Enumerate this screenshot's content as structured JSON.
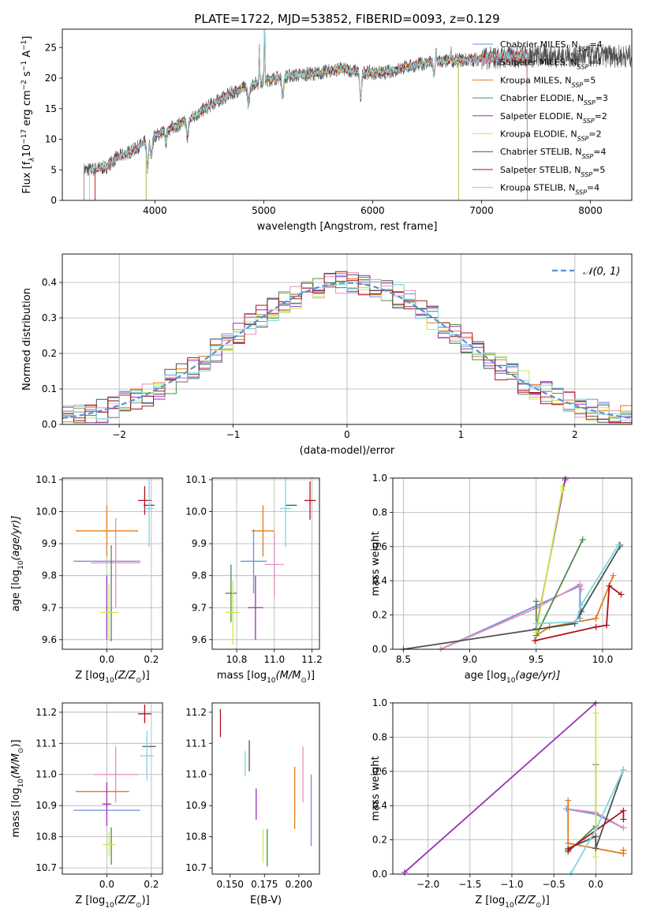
{
  "colors": {
    "chabrier_miles": "#6f8fd9",
    "salpeter_miles": "#e58fbf",
    "kroupa_miles": "#e07a1f",
    "chabrier_elodie": "#4f8a4f",
    "salpeter_elodie": "#9a2fb5",
    "kroupa_elodie": "#cde84a",
    "chabrier_stelib": "#505050",
    "salpeter_stelib": "#b0121a",
    "kroupa_stelib": "#7fd6e0",
    "normal": "#5a8fd6"
  },
  "chart_data": [
    {
      "id": "spectrum",
      "type": "line",
      "title": "PLATE=1722, MJD=53852, FIBERID=0093, z=0.129",
      "xlabel": "wavelength [Angstrom, rest frame]",
      "ylabel": "Flux [f",
      "ylabel_sub": "λ",
      "ylabel_mid": "10",
      "ylabel_sup1": "−17",
      "ylabel_end": " erg cm",
      "ylabel_sup2": "−2",
      "ylabel_mid2": " s",
      "ylabel_sup3": "−1",
      "ylabel_mid3": " A",
      "ylabel_sup4": "−1",
      "ylabel_close": "]",
      "xlim": [
        3150,
        8380
      ],
      "ylim": [
        0,
        28
      ],
      "xticks": [
        "4000",
        "5000",
        "6000",
        "7000",
        "8000"
      ],
      "yticks": [
        "0",
        "5",
        "10",
        "15",
        "20",
        "25"
      ],
      "continuum": {
        "x": [
          3400,
          3550,
          3650,
          3800,
          3950,
          4100,
          4300,
          4500,
          4700,
          4900,
          5100,
          5300,
          5500,
          5700,
          5900,
          6100,
          6300,
          6500,
          6700,
          6900,
          7100,
          7300,
          7420
        ],
        "y": [
          5.0,
          5.4,
          7.0,
          8.2,
          10.0,
          11.5,
          13.0,
          15.5,
          17.5,
          19.0,
          20.0,
          20.5,
          20.8,
          21.5,
          21.0,
          20.8,
          21.8,
          22.5,
          22.8,
          23.0,
          23.3,
          23.5,
          23.6
        ]
      },
      "absorption_features": [
        {
          "x": 3933,
          "depth": 4.5
        },
        {
          "x": 3968,
          "depth": 3.0
        },
        {
          "x": 4102,
          "depth": 2.0
        },
        {
          "x": 4300,
          "depth": 2.5
        },
        {
          "x": 4861,
          "depth": 3.0
        },
        {
          "x": 5175,
          "depth": 3.0
        },
        {
          "x": 5890,
          "depth": 4.5
        },
        {
          "x": 6563,
          "depth": 2.0
        }
      ],
      "emission_features": [
        {
          "x": 4959,
          "height": 6.0
        },
        {
          "x": 5007,
          "height": 10.0
        },
        {
          "x": 6583,
          "height": 2.0
        },
        {
          "x": 6720,
          "height": 1.5
        }
      ],
      "series": [
        {
          "name": "Chabrier MILES, N",
          "sub": "SSP",
          "suffix": "=4",
          "key": "chabrier_miles",
          "xmax": 7420
        },
        {
          "name": "Salpeter MILES, N",
          "sub": "SSP",
          "suffix": "=4",
          "key": "salpeter_miles",
          "xmax": 7420
        },
        {
          "name": "Kroupa MILES, N",
          "sub": "SSP",
          "suffix": "=5",
          "key": "kroupa_miles",
          "xmax": 7420
        },
        {
          "name": "Chabrier ELODIE, N",
          "sub": "SSP",
          "suffix": "=3",
          "key": "chabrier_elodie",
          "xmax": 6790
        },
        {
          "name": "Salpeter ELODIE, N",
          "sub": "SSP",
          "suffix": "=2",
          "key": "salpeter_elodie",
          "xmax": 6790
        },
        {
          "name": "Kroupa ELODIE, N",
          "sub": "SSP",
          "suffix": "=2",
          "key": "kroupa_elodie",
          "xmax": 6790
        },
        {
          "name": "Chabrier STELIB, N",
          "sub": "SSP",
          "suffix": "=4",
          "key": "chabrier_stelib",
          "xmax": 8380
        },
        {
          "name": "Salpeter STELIB, N",
          "sub": "SSP",
          "suffix": "=5",
          "key": "salpeter_stelib",
          "xmax": 7420
        },
        {
          "name": "Kroupa STELIB, N",
          "sub": "SSP",
          "suffix": "=4",
          "key": "kroupa_stelib",
          "xmax": 7420
        }
      ],
      "model_min_x": [
        3450,
        3450,
        3450,
        3920,
        3920,
        3920,
        3350,
        3450,
        3400
      ],
      "legend": "top-right",
      "grid": false
    },
    {
      "id": "residuals",
      "type": "histogram",
      "xlabel": "(data-model)/error",
      "ylabel": "Normed distribution",
      "xlim": [
        -2.5,
        2.5
      ],
      "ylim": [
        0,
        0.48
      ],
      "xticks": [
        "−2",
        "−1",
        "0",
        "1",
        "2"
      ],
      "yticks": [
        "0.0",
        "0.1",
        "0.2",
        "0.3",
        "0.4"
      ],
      "bin_width": 0.1,
      "normal_label": "𝒩(0, 1)",
      "legend": "top-right",
      "grid": true
    },
    {
      "id": "z_age",
      "type": "errorbar",
      "xlabel": "Z [log",
      "xlabel_sub": "10",
      "xlabel_rest": "(Z/Z",
      "xlabel_sub2": "⊙",
      "xlabel_close": ")]",
      "ylabel": "age  [log",
      "ylabel_sub": "10",
      "ylabel_rest": "(age/yr)]",
      "xlim": [
        -0.2,
        0.25
      ],
      "ylim": [
        9.57,
        10.105
      ],
      "xticks": [
        "0.0",
        "0.2"
      ],
      "yticks": [
        "9.6",
        "9.7",
        "9.8",
        "9.9",
        "10.0",
        "10.1"
      ],
      "points": [
        {
          "key": "chabrier_miles",
          "x": 0.0,
          "xerr": 0.15,
          "y": 9.845,
          "yerr": 0.0
        },
        {
          "key": "salpeter_miles",
          "x": 0.04,
          "xerr": 0.11,
          "y": 9.84,
          "yerr": 0.14
        },
        {
          "key": "kroupa_miles",
          "x": 0.0,
          "xerr": 0.14,
          "y": 9.94,
          "yerr": 0.08
        },
        {
          "key": "chabrier_elodie",
          "x": 0.02,
          "xerr": 0.0,
          "y": 9.745,
          "yerr": 0.15
        },
        {
          "key": "salpeter_elodie",
          "x": 0.0,
          "xerr": 0.0,
          "y": 9.7,
          "yerr": 0.1
        },
        {
          "key": "kroupa_elodie",
          "x": 0.01,
          "xerr": 0.04,
          "y": 9.685,
          "yerr": 0.09
        },
        {
          "key": "chabrier_stelib",
          "x": 0.19,
          "xerr": 0.025,
          "y": 10.02,
          "yerr": 0.0
        },
        {
          "key": "salpeter_stelib",
          "x": 0.17,
          "xerr": 0.03,
          "y": 10.035,
          "yerr": 0.045
        },
        {
          "key": "kroupa_stelib",
          "x": 0.19,
          "xerr": 0.02,
          "y": 10.01,
          "yerr": 0.12
        }
      ],
      "grid": true
    },
    {
      "id": "mass_age",
      "type": "errorbar",
      "xlabel": "mass [log",
      "xlabel_sub": "10",
      "xlabel_rest": "(M/M",
      "xlabel_sub2": "⊙",
      "xlabel_close": ")]",
      "ylabel": "",
      "xlim": [
        10.67,
        11.24
      ],
      "ylim": [
        9.57,
        10.105
      ],
      "xticks": [
        "10.8",
        "11.0",
        "11.2"
      ],
      "yticks": [
        "9.6",
        "9.7",
        "9.8",
        "9.9",
        "10.0",
        "10.1"
      ],
      "points": [
        {
          "key": "chabrier_miles",
          "x": 10.89,
          "xerr": 0.07,
          "y": 9.845,
          "yerr": 0.1
        },
        {
          "key": "salpeter_miles",
          "x": 11.0,
          "xerr": 0.05,
          "y": 9.835,
          "yerr": 0.1
        },
        {
          "key": "kroupa_miles",
          "x": 10.94,
          "xerr": 0.06,
          "y": 9.94,
          "yerr": 0.08
        },
        {
          "key": "chabrier_elodie",
          "x": 10.77,
          "xerr": 0.03,
          "y": 9.745,
          "yerr": 0.09
        },
        {
          "key": "salpeter_elodie",
          "x": 10.9,
          "xerr": 0.04,
          "y": 9.7,
          "yerr": 0.1
        },
        {
          "key": "kroupa_elodie",
          "x": 10.78,
          "xerr": 0.04,
          "y": 9.685,
          "yerr": 0.1
        },
        {
          "key": "chabrier_stelib",
          "x": 11.09,
          "xerr": 0.03,
          "y": 10.02,
          "yerr": 0.0
        },
        {
          "key": "salpeter_stelib",
          "x": 11.19,
          "xerr": 0.03,
          "y": 10.035,
          "yerr": 0.06
        },
        {
          "key": "kroupa_stelib",
          "x": 11.06,
          "xerr": 0.03,
          "y": 10.01,
          "yerr": 0.12
        }
      ],
      "grid": true
    },
    {
      "id": "age_weight",
      "type": "line",
      "xlabel": "age  [log",
      "xlabel_sub": "10",
      "xlabel_rest": "(age/yr)]",
      "ylabel": "mass weight",
      "xlim": [
        8.42,
        10.22
      ],
      "ylim": [
        0,
        1
      ],
      "xticks": [
        "8.5",
        "9.0",
        "9.5",
        "10.0"
      ],
      "yticks": [
        "0.0",
        "0.2",
        "0.4",
        "0.6",
        "0.8",
        "1.0"
      ],
      "series": [
        {
          "key": "chabrier_miles",
          "x": [
            8.78,
            9.83,
            9.83
          ],
          "y": [
            0.0,
            0.37,
            0.18
          ]
        },
        {
          "key": "salpeter_miles",
          "x": [
            8.78,
            9.5,
            9.83,
            9.84
          ],
          "y": [
            0.0,
            0.24,
            0.38,
            0.35
          ]
        },
        {
          "key": "kroupa_miles",
          "x": [
            9.5,
            9.6,
            9.95,
            10.08
          ],
          "y": [
            0.08,
            0.13,
            0.18,
            0.43
          ]
        },
        {
          "key": "chabrier_elodie",
          "x": [
            9.5,
            9.5,
            9.85
          ],
          "y": [
            0.28,
            0.08,
            0.64
          ]
        },
        {
          "key": "salpeter_elodie",
          "x": [
            9.5,
            9.72,
            9.72
          ],
          "y": [
            0.12,
            1.0,
            0.99
          ]
        },
        {
          "key": "kroupa_elodie",
          "x": [
            9.5,
            9.7,
            9.7
          ],
          "y": [
            0.1,
            0.95,
            0.93
          ]
        },
        {
          "key": "chabrier_stelib",
          "x": [
            8.5,
            9.79,
            9.84,
            10.13,
            10.13
          ],
          "y": [
            0.0,
            0.15,
            0.22,
            0.6,
            0.61
          ]
        },
        {
          "key": "salpeter_stelib",
          "x": [
            9.49,
            9.95,
            10.03,
            10.05,
            10.14
          ],
          "y": [
            0.05,
            0.13,
            0.14,
            0.37,
            0.32
          ]
        },
        {
          "key": "kroupa_stelib",
          "x": [
            9.5,
            9.8,
            9.84,
            10.12
          ],
          "y": [
            0.15,
            0.16,
            0.26,
            0.61
          ]
        }
      ],
      "grid": true
    },
    {
      "id": "z_mass",
      "type": "errorbar",
      "xlabel": "Z [log",
      "xlabel_sub": "10",
      "xlabel_rest": "(Z/Z",
      "xlabel_sub2": "⊙",
      "xlabel_close": ")]",
      "ylabel": "mass [log",
      "ylabel_sub": "10",
      "ylabel_rest": "(M/M",
      "ylabel_sub2": "⊙",
      "ylabel_close": ")]",
      "xlim": [
        -0.2,
        0.25
      ],
      "ylim": [
        10.68,
        11.23
      ],
      "xticks": [
        "0.0",
        "0.2"
      ],
      "yticks": [
        "10.7",
        "10.8",
        "10.9",
        "11.0",
        "11.1",
        "11.2"
      ],
      "points": [
        {
          "key": "chabrier_miles",
          "x": 0.0,
          "xerr": 0.15,
          "y": 10.885,
          "yerr": 0.0
        },
        {
          "key": "salpeter_miles",
          "x": 0.04,
          "xerr": 0.1,
          "y": 11.0,
          "yerr": 0.09
        },
        {
          "key": "kroupa_miles",
          "x": -0.02,
          "xerr": 0.12,
          "y": 10.945,
          "yerr": 0.0
        },
        {
          "key": "chabrier_elodie",
          "x": 0.02,
          "xerr": 0.0,
          "y": 10.77,
          "yerr": 0.06
        },
        {
          "key": "salpeter_elodie",
          "x": 0.0,
          "xerr": 0.02,
          "y": 10.905,
          "yerr": 0.07
        },
        {
          "key": "kroupa_elodie",
          "x": 0.01,
          "xerr": 0.03,
          "y": 10.775,
          "yerr": 0.04
        },
        {
          "key": "chabrier_stelib",
          "x": 0.19,
          "xerr": 0.03,
          "y": 11.09,
          "yerr": 0.0
        },
        {
          "key": "salpeter_stelib",
          "x": 0.17,
          "xerr": 0.03,
          "y": 11.195,
          "yerr": 0.03
        },
        {
          "key": "kroupa_stelib",
          "x": 0.18,
          "xerr": 0.03,
          "y": 11.06,
          "yerr": 0.08
        }
      ],
      "grid": true
    },
    {
      "id": "ebv_mass",
      "type": "errorbar",
      "xlabel": "E(B-V)",
      "ylabel": "",
      "xlim": [
        0.137,
        0.215
      ],
      "ylim": [
        10.68,
        11.23
      ],
      "xticks": [
        "0.150",
        "0.175",
        "0.200"
      ],
      "yticks": [
        "10.7",
        "10.8",
        "10.9",
        "11.0",
        "11.1",
        "11.2"
      ],
      "points": [
        {
          "key": "chabrier_miles",
          "x": 0.209,
          "xerr": 0.0,
          "y": 10.885,
          "yerr": 0.115
        },
        {
          "key": "salpeter_miles",
          "x": 0.203,
          "xerr": 0.0,
          "y": 11.0,
          "yerr": 0.09
        },
        {
          "key": "kroupa_miles",
          "x": 0.197,
          "xerr": 0.0,
          "y": 10.925,
          "yerr": 0.1
        },
        {
          "key": "chabrier_elodie",
          "x": 0.177,
          "xerr": 0.0,
          "y": 10.765,
          "yerr": 0.06
        },
        {
          "key": "salpeter_elodie",
          "x": 0.169,
          "xerr": 0.0,
          "y": 10.905,
          "yerr": 0.05
        },
        {
          "key": "kroupa_elodie",
          "x": 0.174,
          "xerr": 0.0,
          "y": 10.77,
          "yerr": 0.055
        },
        {
          "key": "chabrier_stelib",
          "x": 0.164,
          "xerr": 0.0,
          "y": 11.06,
          "yerr": 0.05
        },
        {
          "key": "salpeter_stelib",
          "x": 0.143,
          "xerr": 0.0,
          "y": 11.165,
          "yerr": 0.045
        },
        {
          "key": "kroupa_stelib",
          "x": 0.161,
          "xerr": 0.0,
          "y": 11.035,
          "yerr": 0.04
        }
      ],
      "grid": false
    },
    {
      "id": "z_weight",
      "type": "line",
      "xlabel": "Z [log",
      "xlabel_sub": "10",
      "xlabel_rest": "(Z/Z",
      "xlabel_sub2": "⊙",
      "xlabel_close": ")]",
      "ylabel": "mass weight",
      "xlim": [
        -2.42,
        0.43
      ],
      "ylim": [
        0,
        1
      ],
      "xticks": [
        "−2.0",
        "−1.5",
        "−1.0",
        "−0.5",
        "0.0"
      ],
      "yticks": [
        "0.0",
        "0.2",
        "0.4",
        "0.6",
        "0.8",
        "1.0"
      ],
      "series": [
        {
          "key": "chabrier_miles",
          "x": [
            -0.35,
            0.0,
            0.33
          ],
          "y": [
            0.38,
            0.35,
            0.27
          ]
        },
        {
          "key": "salpeter_miles",
          "x": [
            -0.33,
            0.0,
            0.33
          ],
          "y": [
            0.38,
            0.36,
            0.27
          ]
        },
        {
          "key": "kroupa_miles",
          "x": [
            -0.33,
            -0.33,
            0.33,
            0.33
          ],
          "y": [
            0.43,
            0.18,
            0.12,
            0.14
          ]
        },
        {
          "key": "chabrier_elodie",
          "x": [
            -0.33,
            0.0,
            0.0
          ],
          "y": [
            0.13,
            0.28,
            0.64
          ]
        },
        {
          "key": "salpeter_elodie",
          "x": [
            -2.28,
            0.0
          ],
          "y": [
            0.01,
            1.0
          ]
        },
        {
          "key": "kroupa_elodie",
          "x": [
            0.0,
            0.0
          ],
          "y": [
            0.94,
            0.1
          ]
        },
        {
          "key": "chabrier_stelib",
          "x": [
            -0.33,
            0.0,
            0.0,
            0.33
          ],
          "y": [
            0.15,
            0.22,
            0.15,
            0.61
          ]
        },
        {
          "key": "salpeter_stelib",
          "x": [
            -0.33,
            0.33,
            0.33
          ],
          "y": [
            0.14,
            0.37,
            0.32
          ]
        },
        {
          "key": "kroupa_stelib",
          "x": [
            -0.3,
            0.0,
            0.33
          ],
          "y": [
            0.0,
            0.26,
            0.61
          ]
        }
      ],
      "grid": true
    }
  ]
}
